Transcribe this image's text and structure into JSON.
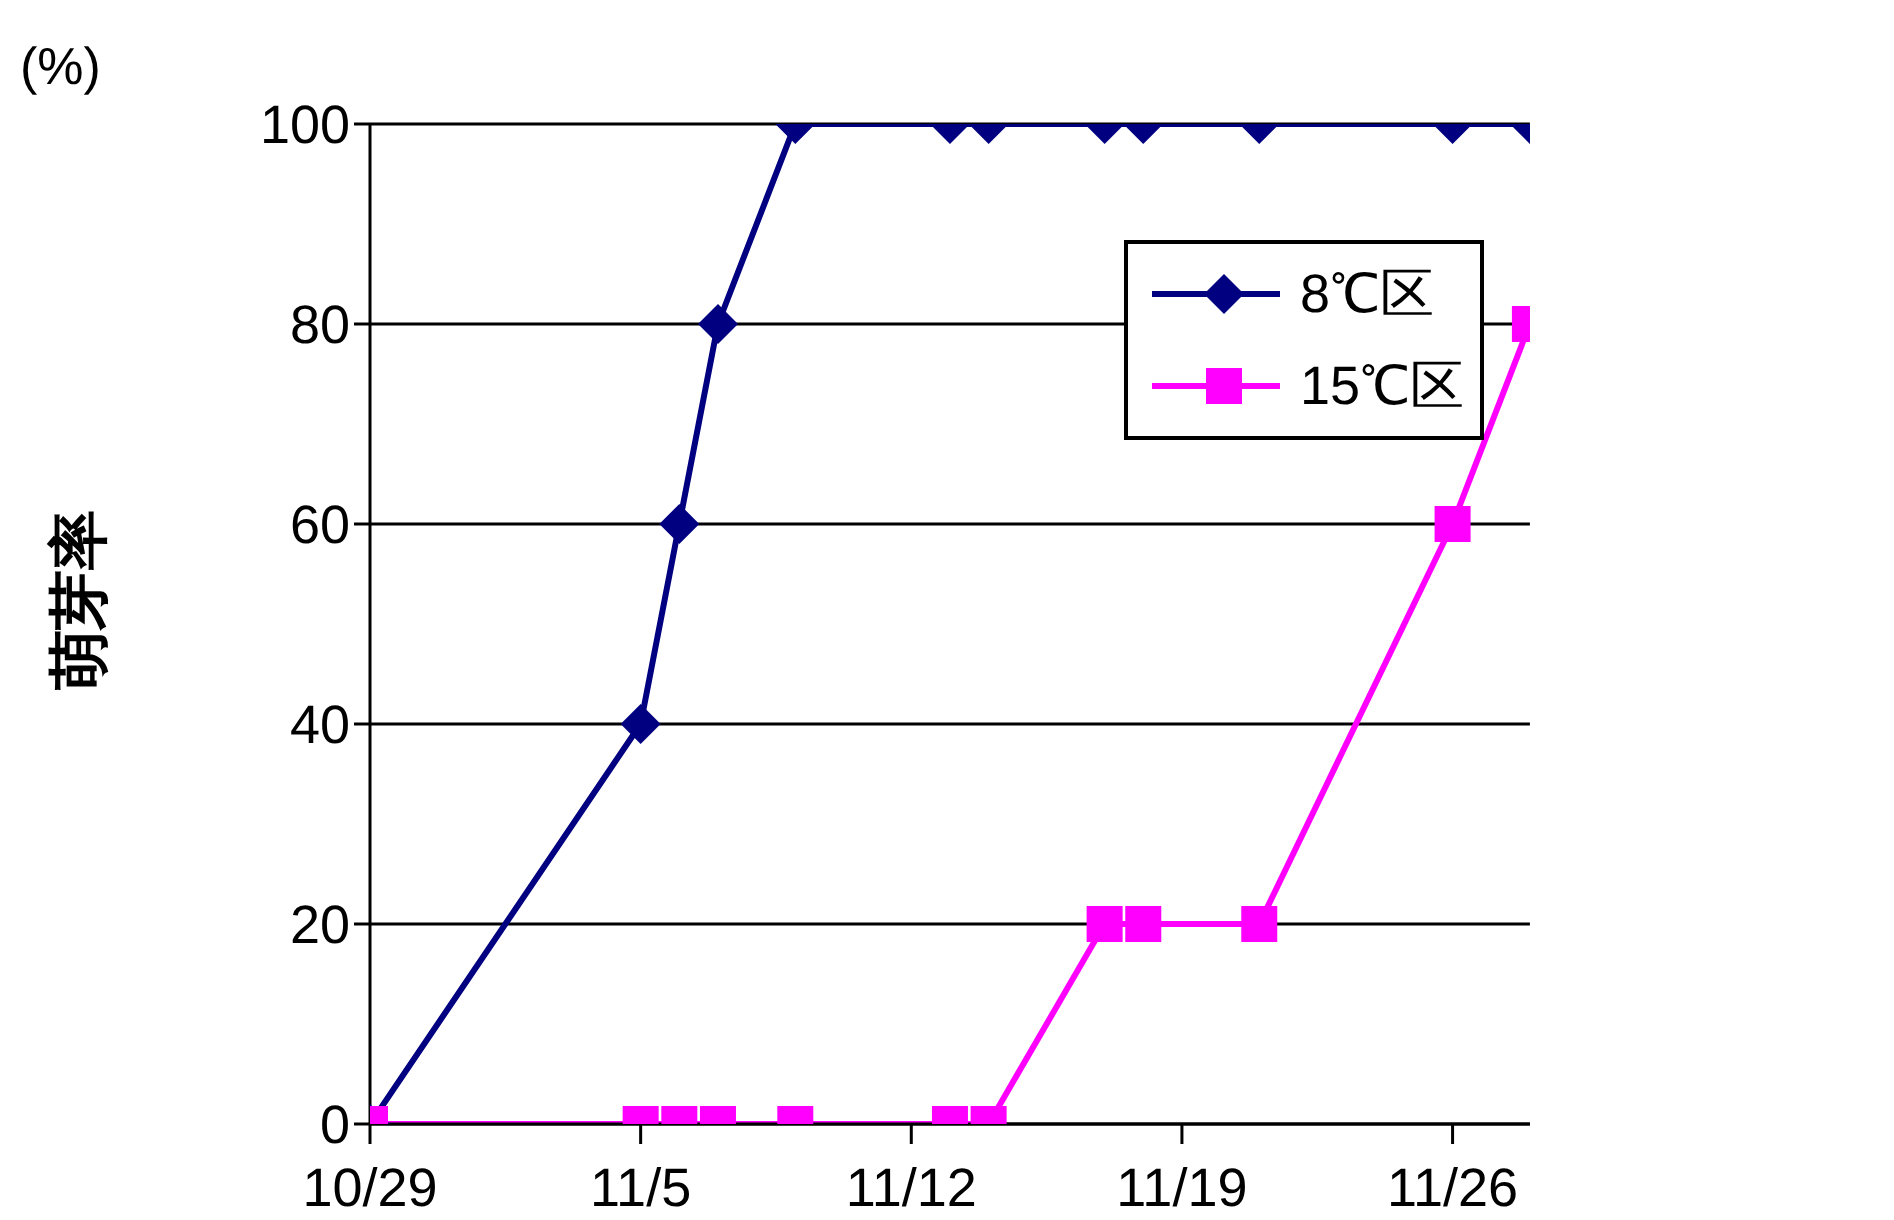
{
  "chart_data": {
    "type": "line",
    "ylabel": "萌芽率",
    "annotations": [
      "(%)"
    ],
    "x": [
      "--10-29",
      "--11-05",
      "--11-06",
      "--11-07",
      "--11-09",
      "--11-13",
      "--11-14",
      "--11-17",
      "--11-18",
      "--11-21",
      "--11-26",
      "--11-28"
    ],
    "series": [
      {
        "name": "8℃区",
        "color": "#000080",
        "marker": "diamond",
        "values": [
          0,
          40,
          60,
          80,
          100,
          100,
          100,
          100,
          100,
          100,
          100,
          100
        ]
      },
      {
        "name": "15℃区",
        "color": "#ff00ff",
        "marker": "square",
        "values": [
          0,
          0,
          0,
          0,
          0,
          0,
          0,
          20,
          20,
          20,
          60,
          80
        ]
      }
    ],
    "xlim": [
      "--10-29",
      "--11-28"
    ],
    "xticks": [
      {
        "value": "--10-29",
        "label": "10/29"
      },
      {
        "value": "--11-05",
        "label": "11/5"
      },
      {
        "value": "--11-12",
        "label": "11/12"
      },
      {
        "value": "--11-19",
        "label": "11/19"
      },
      {
        "value": "--11-26",
        "label": "11/26"
      }
    ],
    "ylim": [
      0,
      100
    ],
    "yticks": [
      0,
      20,
      40,
      60,
      80,
      100
    ],
    "grid": "y",
    "legend": "top right",
    "line_style": "solid"
  }
}
